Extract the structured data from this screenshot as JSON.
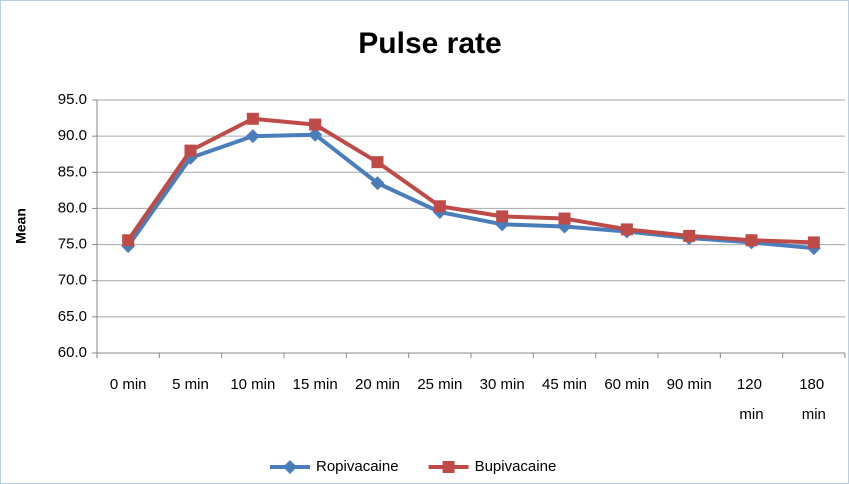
{
  "chart_data": {
    "type": "line",
    "title": "Pulse rate",
    "y_label": "Mean",
    "categories": [
      "0 min",
      "5 min",
      "10 min",
      "15 min",
      "20 min",
      "25 min",
      "30 min",
      "45 min",
      "60 min",
      "90 min",
      "120 min",
      "180 min"
    ],
    "series": [
      {
        "name": "Ropivacaine",
        "color": "#4a7ebb",
        "marker": "diamond",
        "values": [
          74.8,
          87.0,
          90.0,
          90.2,
          83.5,
          79.5,
          77.8,
          77.5,
          76.8,
          75.9,
          75.3,
          74.5
        ]
      },
      {
        "name": "Bupivacaine",
        "color": "#be4b48",
        "marker": "square",
        "values": [
          75.6,
          88.0,
          92.4,
          91.6,
          86.4,
          80.3,
          78.9,
          78.6,
          77.1,
          76.2,
          75.6,
          75.3
        ]
      }
    ],
    "ylim": [
      60,
      95
    ],
    "yticks": [
      {
        "value": 60,
        "label": "60.0"
      },
      {
        "value": 65,
        "label": "65.0"
      },
      {
        "value": 70,
        "label": "70.0"
      },
      {
        "value": 75,
        "label": "75.0"
      },
      {
        "value": 80,
        "label": "80.0"
      },
      {
        "value": 85,
        "label": "85.0"
      },
      {
        "value": 90,
        "label": "90.0"
      },
      {
        "value": 95,
        "label": "95.0"
      }
    ],
    "grid": true,
    "legend": "bottom"
  }
}
